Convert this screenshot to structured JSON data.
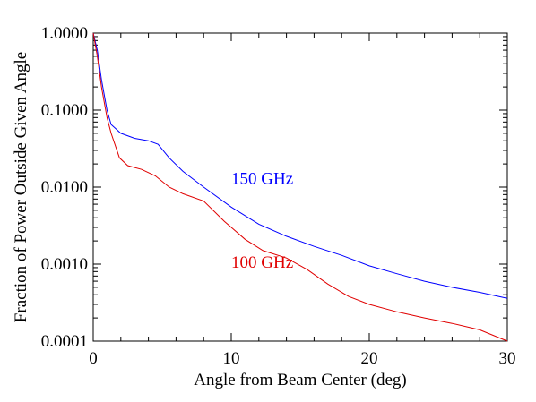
{
  "chart_data": {
    "type": "line",
    "title": "",
    "xlabel": "Angle from Beam Center (deg)",
    "ylabel": "Fraction of Power Outside Given Angle",
    "xlim": [
      0,
      30
    ],
    "ylim": [
      0.0001,
      1.0
    ],
    "yscale": "log",
    "grid": false,
    "legend": "none",
    "x_ticks": [
      0,
      10,
      20,
      30
    ],
    "x_tick_labels": [
      "0",
      "10",
      "20",
      "30"
    ],
    "y_ticks": [
      0.0001,
      0.001,
      0.01,
      0.1,
      1.0
    ],
    "y_tick_labels": [
      "0.0001",
      "0.0010",
      "0.0100",
      "0.1000",
      "1.0000"
    ],
    "series": [
      {
        "name": "150 GHz",
        "color": "#0000ff",
        "x": [
          0,
          0.3,
          0.6,
          1.0,
          1.3,
          2.0,
          3.0,
          4.0,
          4.7,
          5.5,
          6.5,
          8.0,
          10.0,
          12.0,
          14.0,
          16.0,
          18.0,
          20.0,
          22.0,
          24.0,
          26.0,
          28.0,
          30.0
        ],
        "y": [
          1.0,
          0.6,
          0.25,
          0.1,
          0.065,
          0.05,
          0.043,
          0.04,
          0.036,
          0.024,
          0.016,
          0.01,
          0.0055,
          0.0033,
          0.0023,
          0.0017,
          0.0013,
          0.00095,
          0.00075,
          0.0006,
          0.0005,
          0.00043,
          0.00036
        ]
      },
      {
        "name": "100 GHz",
        "color": "#e00000",
        "x": [
          0,
          0.3,
          0.6,
          1.0,
          1.3,
          1.9,
          2.5,
          3.5,
          4.5,
          5.5,
          6.5,
          8.0,
          9.5,
          11.0,
          12.3,
          14.0,
          15.5,
          17.0,
          18.5,
          20.0,
          22.0,
          24.0,
          26.0,
          28.0,
          30.0
        ],
        "y": [
          1.0,
          0.5,
          0.2,
          0.08,
          0.05,
          0.024,
          0.019,
          0.017,
          0.014,
          0.01,
          0.0082,
          0.0066,
          0.0036,
          0.0021,
          0.0015,
          0.0012,
          0.00085,
          0.00055,
          0.00038,
          0.0003,
          0.00024,
          0.0002,
          0.00017,
          0.00014,
          0.0001
        ]
      }
    ],
    "annotations": [
      {
        "text": "150 GHz",
        "x": 10,
        "y": 0.011,
        "color": "#0000ff"
      },
      {
        "text": "100 GHz",
        "x": 10,
        "y": 0.0009,
        "color": "#e00000"
      }
    ]
  }
}
